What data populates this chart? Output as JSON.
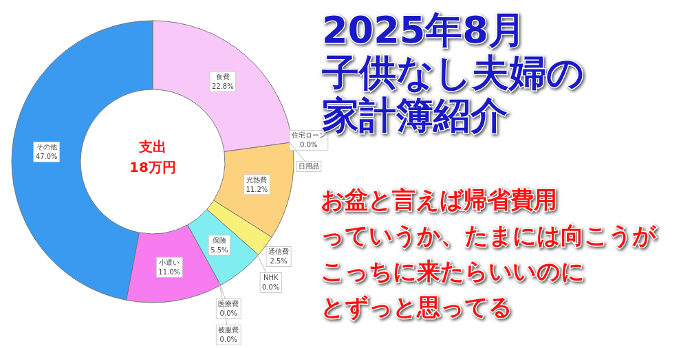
{
  "chart_data": {
    "type": "donut",
    "title": "2025年8月",
    "subtitle": "子供なし夫婦の家計簿紹介",
    "annotations": [
      "支出",
      "18万円",
      "お盆と言えば帰省費用",
      "っていうか、たまには向こうが",
      "こっちに来たらいいのに",
      "とずっと思ってる"
    ],
    "categories": [
      "食費",
      "住宅ローン",
      "日用品",
      "光熱費",
      "通信費",
      "NHK",
      "保険",
      "医療費",
      "被服費",
      "小遣い",
      "その他"
    ],
    "values": [
      22.8,
      0,
      0,
      11.2,
      2.5,
      0,
      5.5,
      0,
      0,
      11.0,
      47.0
    ],
    "colors": [
      "#f8c8f8",
      "#e0a0e0",
      "#c0c0c0",
      "#fdd27e",
      "#f7f07a",
      "#e8e060",
      "#80eef0",
      "#60d0e0",
      "#e060e0",
      "#f67cf0",
      "#3a9af0"
    ],
    "value_labels": [
      "22.8%",
      "0.0%",
      null,
      "11.2%",
      "2.5%",
      "0.0%",
      "5.5%",
      "0.0%",
      "0.0%",
      "11.0%",
      "47.0%"
    ]
  }
}
